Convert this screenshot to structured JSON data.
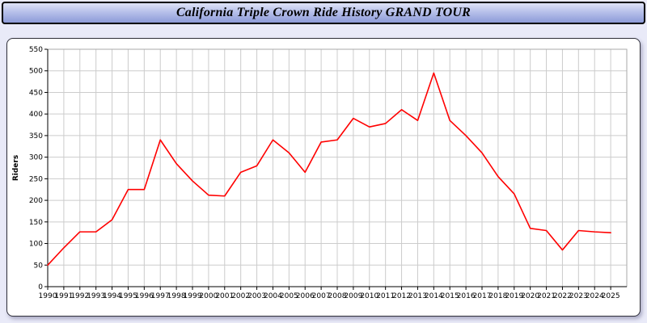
{
  "header": {
    "title": "California Triple Crown Ride History GRAND TOUR"
  },
  "chart_data": {
    "type": "line",
    "title": "California Triple Crown Ride History GRAND TOUR",
    "xlabel": "",
    "ylabel": "Riders",
    "ylim": [
      0,
      550
    ],
    "ytick_step": 50,
    "grid": true,
    "legend_position": "none",
    "x": [
      1990,
      1991,
      1992,
      1993,
      1994,
      1995,
      1996,
      1997,
      1998,
      1999,
      2000,
      2001,
      2002,
      2003,
      2004,
      2005,
      2006,
      2007,
      2008,
      2009,
      2010,
      2011,
      2012,
      2013,
      2014,
      2015,
      2016,
      2017,
      2018,
      2019,
      2020,
      2021,
      2022,
      2023,
      2024,
      2025
    ],
    "series": [
      {
        "name": "Riders",
        "color": "#ff0000",
        "values": [
          50,
          90,
          127,
          127,
          155,
          225,
          225,
          340,
          285,
          245,
          212,
          210,
          265,
          280,
          340,
          310,
          265,
          335,
          340,
          390,
          370,
          378,
          410,
          385,
          495,
          385,
          350,
          310,
          255,
          215,
          135,
          130,
          85,
          130,
          127,
          125
        ]
      }
    ],
    "colors": {
      "line": "#ff0000",
      "grid": "#cccccc",
      "axis": "#000000",
      "plot_background": "#ffffff"
    }
  }
}
